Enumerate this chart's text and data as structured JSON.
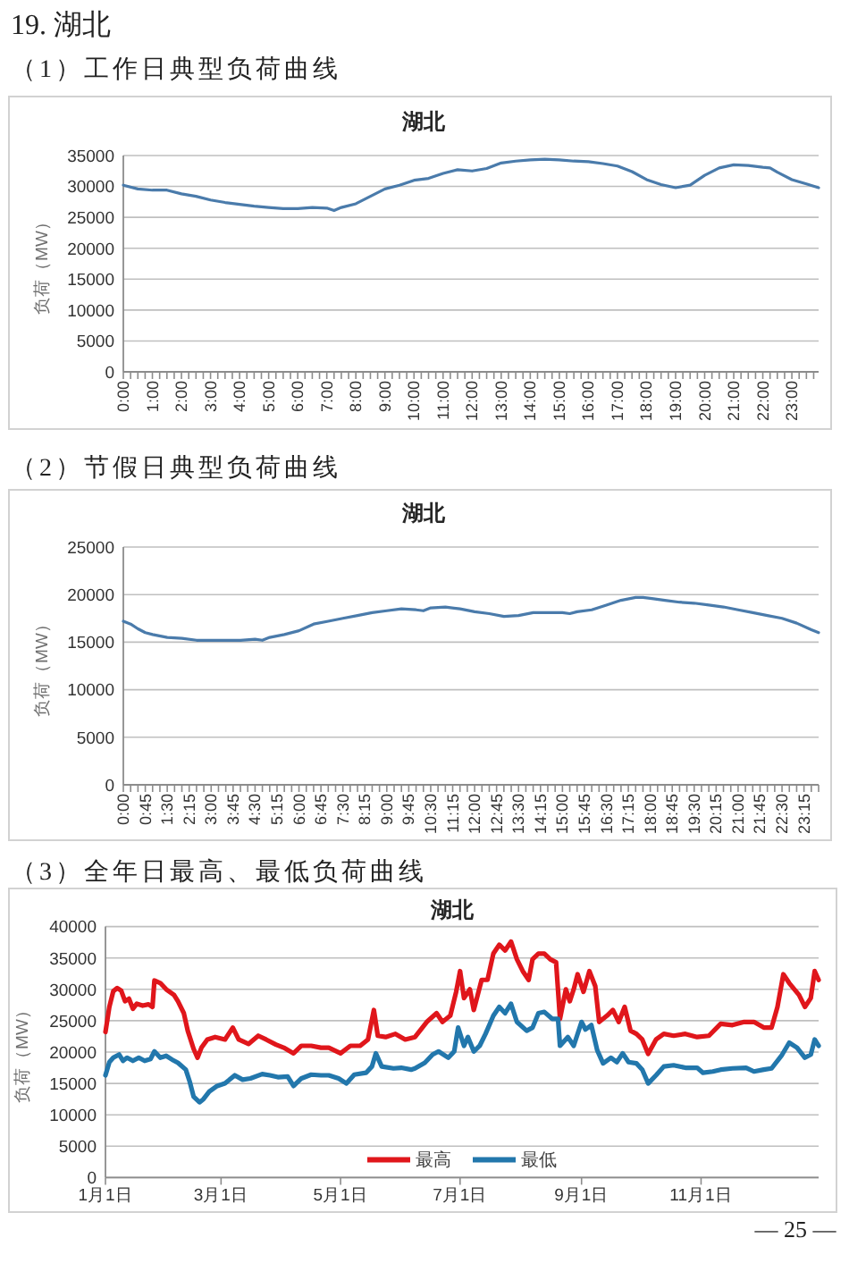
{
  "chart_data": [
    {
      "type": "line",
      "title": "湖北",
      "ylabel": "负荷（MW）",
      "annotations": [
        "19. 湖北",
        "（1）工作日典型负荷曲线"
      ],
      "series": [
        {
          "color": "#4a7bab",
          "x": [
            0,
            0.5,
            1,
            1.5,
            2,
            2.5,
            3,
            3.5,
            4,
            4.5,
            5,
            5.5,
            6,
            6.5,
            7,
            7.25,
            7.5,
            8,
            8.5,
            9,
            9.5,
            10,
            10.5,
            11,
            11.5,
            12,
            12.5,
            13,
            13.5,
            14,
            14.5,
            15,
            15.5,
            16,
            16.5,
            17,
            17.5,
            18,
            18.5,
            19,
            19.5,
            20,
            20.5,
            21,
            21.5,
            22,
            22.25,
            22.5,
            23,
            23.5,
            23.92
          ],
          "values": [
            30200,
            29600,
            29400,
            29400,
            28800,
            28400,
            27800,
            27400,
            27100,
            26800,
            26600,
            26400,
            26400,
            26600,
            26500,
            26100,
            26600,
            27200,
            28400,
            29600,
            30200,
            31000,
            31300,
            32100,
            32700,
            32500,
            32900,
            33800,
            34100,
            34300,
            34400,
            34300,
            34100,
            34000,
            33700,
            33300,
            32400,
            31100,
            30300,
            29800,
            30200,
            31800,
            33000,
            33500,
            33400,
            33100,
            33000,
            32300,
            31100,
            30400,
            29800
          ]
        }
      ],
      "xlim": [
        0,
        23.92
      ],
      "xticks": [
        {
          "value": 0,
          "label": "0:00"
        },
        {
          "value": 0.25,
          "label": null
        },
        {
          "value": 0.5,
          "label": null
        },
        {
          "value": 0.75,
          "label": null
        },
        {
          "value": 1,
          "label": "1:00"
        },
        {
          "value": 1.25,
          "label": null
        },
        {
          "value": 1.5,
          "label": null
        },
        {
          "value": 1.75,
          "label": null
        },
        {
          "value": 2,
          "label": "2:00"
        },
        {
          "value": 2.25,
          "label": null
        },
        {
          "value": 2.5,
          "label": null
        },
        {
          "value": 2.75,
          "label": null
        },
        {
          "value": 3,
          "label": "3:00"
        },
        {
          "value": 3.25,
          "label": null
        },
        {
          "value": 3.5,
          "label": null
        },
        {
          "value": 3.75,
          "label": null
        },
        {
          "value": 4,
          "label": "4:00"
        },
        {
          "value": 4.25,
          "label": null
        },
        {
          "value": 4.5,
          "label": null
        },
        {
          "value": 4.75,
          "label": null
        },
        {
          "value": 5,
          "label": "5:00"
        },
        {
          "value": 5.25,
          "label": null
        },
        {
          "value": 5.5,
          "label": null
        },
        {
          "value": 5.75,
          "label": null
        },
        {
          "value": 6,
          "label": "6:00"
        },
        {
          "value": 6.25,
          "label": null
        },
        {
          "value": 6.5,
          "label": null
        },
        {
          "value": 6.75,
          "label": null
        },
        {
          "value": 7,
          "label": "7:00"
        },
        {
          "value": 7.25,
          "label": null
        },
        {
          "value": 7.5,
          "label": null
        },
        {
          "value": 7.75,
          "label": null
        },
        {
          "value": 8,
          "label": "8:00"
        },
        {
          "value": 8.25,
          "label": null
        },
        {
          "value": 8.5,
          "label": null
        },
        {
          "value": 8.75,
          "label": null
        },
        {
          "value": 9,
          "label": "9:00"
        },
        {
          "value": 9.25,
          "label": null
        },
        {
          "value": 9.5,
          "label": null
        },
        {
          "value": 9.75,
          "label": null
        },
        {
          "value": 10,
          "label": "10:00"
        },
        {
          "value": 10.25,
          "label": null
        },
        {
          "value": 10.5,
          "label": null
        },
        {
          "value": 10.75,
          "label": null
        },
        {
          "value": 11,
          "label": "11:00"
        },
        {
          "value": 11.25,
          "label": null
        },
        {
          "value": 11.5,
          "label": null
        },
        {
          "value": 11.75,
          "label": null
        },
        {
          "value": 12,
          "label": "12:00"
        },
        {
          "value": 12.25,
          "label": null
        },
        {
          "value": 12.5,
          "label": null
        },
        {
          "value": 12.75,
          "label": null
        },
        {
          "value": 13,
          "label": "13:00"
        },
        {
          "value": 13.25,
          "label": null
        },
        {
          "value": 13.5,
          "label": null
        },
        {
          "value": 13.75,
          "label": null
        },
        {
          "value": 14,
          "label": "14:00"
        },
        {
          "value": 14.25,
          "label": null
        },
        {
          "value": 14.5,
          "label": null
        },
        {
          "value": 14.75,
          "label": null
        },
        {
          "value": 15,
          "label": "15:00"
        },
        {
          "value": 15.25,
          "label": null
        },
        {
          "value": 15.5,
          "label": null
        },
        {
          "value": 15.75,
          "label": null
        },
        {
          "value": 16,
          "label": "16:00"
        },
        {
          "value": 16.25,
          "label": null
        },
        {
          "value": 16.5,
          "label": null
        },
        {
          "value": 16.75,
          "label": null
        },
        {
          "value": 17,
          "label": "17:00"
        },
        {
          "value": 17.25,
          "label": null
        },
        {
          "value": 17.5,
          "label": null
        },
        {
          "value": 17.75,
          "label": null
        },
        {
          "value": 18,
          "label": "18:00"
        },
        {
          "value": 18.25,
          "label": null
        },
        {
          "value": 18.5,
          "label": null
        },
        {
          "value": 18.75,
          "label": null
        },
        {
          "value": 19,
          "label": "19:00"
        },
        {
          "value": 19.25,
          "label": null
        },
        {
          "value": 19.5,
          "label": null
        },
        {
          "value": 19.75,
          "label": null
        },
        {
          "value": 20,
          "label": "20:00"
        },
        {
          "value": 20.25,
          "label": null
        },
        {
          "value": 20.5,
          "label": null
        },
        {
          "value": 20.75,
          "label": null
        },
        {
          "value": 21,
          "label": "21:00"
        },
        {
          "value": 21.25,
          "label": null
        },
        {
          "value": 21.5,
          "label": null
        },
        {
          "value": 21.75,
          "label": null
        },
        {
          "value": 22,
          "label": "22:00"
        },
        {
          "value": 22.25,
          "label": null
        },
        {
          "value": 22.5,
          "label": null
        },
        {
          "value": 22.75,
          "label": null
        },
        {
          "value": 23,
          "label": "23:00"
        },
        {
          "value": 23.25,
          "label": null
        },
        {
          "value": 23.5,
          "label": null
        },
        {
          "value": 23.75,
          "label": null
        }
      ],
      "ylim": [
        0,
        35000
      ],
      "yticks": [
        0,
        5000,
        10000,
        15000,
        20000,
        25000,
        30000,
        35000
      ],
      "grid": "y"
    },
    {
      "type": "line",
      "title": "湖北",
      "ylabel": "负荷（MW）",
      "annotations": [
        "（2）节假日典型负荷曲线"
      ],
      "series": [
        {
          "color": "#4a7bab",
          "x": [
            0,
            0.25,
            0.5,
            0.75,
            1,
            1.5,
            2,
            2.5,
            3,
            3.5,
            4,
            4.5,
            4.75,
            5,
            5.5,
            6,
            6.5,
            7,
            7.5,
            8,
            8.5,
            9,
            9.5,
            10,
            10.25,
            10.5,
            11,
            11.5,
            12,
            12.5,
            13,
            13.5,
            14,
            14.5,
            15,
            15.25,
            15.5,
            16,
            16.5,
            17,
            17.5,
            17.75,
            18,
            18.5,
            19,
            19.5,
            20,
            20.5,
            21,
            21.5,
            22,
            22.5,
            23,
            23.5,
            23.75
          ],
          "values": [
            17200,
            16900,
            16400,
            16000,
            15800,
            15500,
            15400,
            15200,
            15200,
            15200,
            15200,
            15300,
            15200,
            15500,
            15800,
            16200,
            16900,
            17200,
            17500,
            17800,
            18100,
            18300,
            18500,
            18400,
            18300,
            18600,
            18700,
            18500,
            18200,
            18000,
            17700,
            17800,
            18100,
            18100,
            18100,
            18000,
            18200,
            18400,
            18900,
            19400,
            19700,
            19700,
            19600,
            19400,
            19200,
            19100,
            18900,
            18700,
            18400,
            18100,
            17800,
            17500,
            17000,
            16300,
            16000
          ]
        }
      ],
      "xlim": [
        0,
        23.75
      ],
      "xticks": [
        {
          "value": 0,
          "label": "0:00"
        },
        {
          "value": 0.25,
          "label": null
        },
        {
          "value": 0.5,
          "label": null
        },
        {
          "value": 0.75,
          "label": "0:45"
        },
        {
          "value": 1,
          "label": null
        },
        {
          "value": 1.25,
          "label": null
        },
        {
          "value": 1.5,
          "label": "1:30"
        },
        {
          "value": 1.75,
          "label": null
        },
        {
          "value": 2,
          "label": null
        },
        {
          "value": 2.25,
          "label": "2:15"
        },
        {
          "value": 2.5,
          "label": null
        },
        {
          "value": 2.75,
          "label": null
        },
        {
          "value": 3,
          "label": "3:00"
        },
        {
          "value": 3.25,
          "label": null
        },
        {
          "value": 3.5,
          "label": null
        },
        {
          "value": 3.75,
          "label": "3:45"
        },
        {
          "value": 4,
          "label": null
        },
        {
          "value": 4.25,
          "label": null
        },
        {
          "value": 4.5,
          "label": "4:30"
        },
        {
          "value": 4.75,
          "label": null
        },
        {
          "value": 5,
          "label": null
        },
        {
          "value": 5.25,
          "label": "5:15"
        },
        {
          "value": 5.5,
          "label": null
        },
        {
          "value": 5.75,
          "label": null
        },
        {
          "value": 6,
          "label": "6:00"
        },
        {
          "value": 6.25,
          "label": null
        },
        {
          "value": 6.5,
          "label": null
        },
        {
          "value": 6.75,
          "label": "6:45"
        },
        {
          "value": 7,
          "label": null
        },
        {
          "value": 7.25,
          "label": null
        },
        {
          "value": 7.5,
          "label": "7:30"
        },
        {
          "value": 7.75,
          "label": null
        },
        {
          "value": 8,
          "label": null
        },
        {
          "value": 8.25,
          "label": "8:15"
        },
        {
          "value": 8.5,
          "label": null
        },
        {
          "value": 8.75,
          "label": null
        },
        {
          "value": 9,
          "label": "9:00"
        },
        {
          "value": 9.25,
          "label": null
        },
        {
          "value": 9.5,
          "label": null
        },
        {
          "value": 9.75,
          "label": "9:45"
        },
        {
          "value": 10,
          "label": null
        },
        {
          "value": 10.25,
          "label": null
        },
        {
          "value": 10.5,
          "label": "10:30"
        },
        {
          "value": 10.75,
          "label": null
        },
        {
          "value": 11,
          "label": null
        },
        {
          "value": 11.25,
          "label": "11:15"
        },
        {
          "value": 11.5,
          "label": null
        },
        {
          "value": 11.75,
          "label": null
        },
        {
          "value": 12,
          "label": "12:00"
        },
        {
          "value": 12.25,
          "label": null
        },
        {
          "value": 12.5,
          "label": null
        },
        {
          "value": 12.75,
          "label": "12:45"
        },
        {
          "value": 13,
          "label": null
        },
        {
          "value": 13.25,
          "label": null
        },
        {
          "value": 13.5,
          "label": "13:30"
        },
        {
          "value": 13.75,
          "label": null
        },
        {
          "value": 14,
          "label": null
        },
        {
          "value": 14.25,
          "label": "14:15"
        },
        {
          "value": 14.5,
          "label": null
        },
        {
          "value": 14.75,
          "label": null
        },
        {
          "value": 15,
          "label": "15:00"
        },
        {
          "value": 15.25,
          "label": null
        },
        {
          "value": 15.5,
          "label": null
        },
        {
          "value": 15.75,
          "label": "15:45"
        },
        {
          "value": 16,
          "label": null
        },
        {
          "value": 16.25,
          "label": null
        },
        {
          "value": 16.5,
          "label": "16:30"
        },
        {
          "value": 16.75,
          "label": null
        },
        {
          "value": 17,
          "label": null
        },
        {
          "value": 17.25,
          "label": "17:15"
        },
        {
          "value": 17.5,
          "label": null
        },
        {
          "value": 17.75,
          "label": null
        },
        {
          "value": 18,
          "label": "18:00"
        },
        {
          "value": 18.25,
          "label": null
        },
        {
          "value": 18.5,
          "label": null
        },
        {
          "value": 18.75,
          "label": "18:45"
        },
        {
          "value": 19,
          "label": null
        },
        {
          "value": 19.25,
          "label": null
        },
        {
          "value": 19.5,
          "label": "19:30"
        },
        {
          "value": 19.75,
          "label": null
        },
        {
          "value": 20,
          "label": null
        },
        {
          "value": 20.25,
          "label": "20:15"
        },
        {
          "value": 20.5,
          "label": null
        },
        {
          "value": 20.75,
          "label": null
        },
        {
          "value": 21,
          "label": "21:00"
        },
        {
          "value": 21.25,
          "label": null
        },
        {
          "value": 21.5,
          "label": null
        },
        {
          "value": 21.75,
          "label": "21:45"
        },
        {
          "value": 22,
          "label": null
        },
        {
          "value": 22.25,
          "label": null
        },
        {
          "value": 22.5,
          "label": "22:30"
        },
        {
          "value": 22.75,
          "label": null
        },
        {
          "value": 23,
          "label": null
        },
        {
          "value": 23.25,
          "label": "23:15"
        },
        {
          "value": 23.5,
          "label": null
        },
        {
          "value": 23.75,
          "label": null
        }
      ],
      "ylim": [
        0,
        25000
      ],
      "yticks": [
        0,
        5000,
        10000,
        15000,
        20000,
        25000
      ],
      "grid": "y"
    },
    {
      "type": "line",
      "title": "湖北",
      "ylabel": "负荷（MW）",
      "annotations": [
        "（3）全年日最高、最低负荷曲线",
        "— 25 —"
      ],
      "series": [
        {
          "name": "最高",
          "color": "#e0161b",
          "x": [
            "--01-01",
            "--01-03",
            "--01-05",
            "--01-07",
            "--01-09",
            "--01-11",
            "--01-13",
            "--01-15",
            "--01-17",
            "--01-20",
            "--01-23",
            "--01-25",
            "--01-26",
            "--01-29",
            "--02-01",
            "--02-05",
            "--02-07",
            "--02-10",
            "--02-12",
            "--02-15",
            "--02-17",
            "--02-19",
            "--02-22",
            "--02-26",
            "--03-03",
            "--03-07",
            "--03-10",
            "--03-15",
            "--03-20",
            "--03-24",
            "--03-29",
            "--04-02",
            "--04-07",
            "--04-11",
            "--04-16",
            "--04-21",
            "--04-25",
            "--05-01",
            "--05-06",
            "--05-11",
            "--05-15",
            "--05-18",
            "--05-20",
            "--05-24",
            "--05-29",
            "--06-03",
            "--06-08",
            "--06-14",
            "--06-19",
            "--06-22",
            "--06-26",
            "--06-29",
            "--07-01",
            "--07-03",
            "--07-06",
            "--07-08",
            "--07-10",
            "--07-12",
            "--07-15",
            "--07-18",
            "--07-21",
            "--07-24",
            "--07-27",
            "--07-30",
            "--08-02",
            "--08-05",
            "--08-07",
            "--08-10",
            "--08-13",
            "--08-16",
            "--08-19",
            "--08-21",
            "--08-24",
            "--08-26",
            "--08-28",
            "--08-30",
            "--09-02",
            "--09-05",
            "--09-08",
            "--09-10",
            "--09-14",
            "--09-17",
            "--09-20",
            "--09-23",
            "--09-26",
            "--09-29",
            "--10-02",
            "--10-05",
            "--10-09",
            "--10-13",
            "--10-18",
            "--10-24",
            "--10-30",
            "--11-05",
            "--11-11",
            "--11-17",
            "--11-23",
            "--11-28",
            "--12-03",
            "--12-07",
            "--12-10",
            "--12-13",
            "--12-16",
            "--12-21",
            "--12-24",
            "--12-27",
            "--12-29",
            "--12-31"
          ],
          "values": [
            23200,
            27200,
            29700,
            30200,
            29800,
            28100,
            28500,
            26900,
            27700,
            27400,
            27600,
            27200,
            31400,
            31000,
            30000,
            29100,
            28100,
            26200,
            23400,
            20500,
            19100,
            20700,
            22000,
            22400,
            22000,
            23900,
            22000,
            21300,
            22600,
            22000,
            21200,
            20700,
            19800,
            21000,
            21000,
            20700,
            20700,
            19800,
            21000,
            21000,
            22000,
            26700,
            22600,
            22400,
            22900,
            22000,
            22400,
            24800,
            26200,
            24800,
            25800,
            29600,
            32900,
            28600,
            30000,
            26700,
            29100,
            31500,
            31500,
            35700,
            37100,
            36200,
            37600,
            34800,
            32900,
            31500,
            34800,
            35700,
            35700,
            34800,
            34300,
            25300,
            30000,
            28100,
            30000,
            32400,
            29600,
            32900,
            30500,
            24800,
            25800,
            26700,
            24800,
            27200,
            23400,
            22900,
            22000,
            19700,
            22000,
            22900,
            22600,
            22900,
            22400,
            22600,
            24500,
            24300,
            24800,
            24800,
            23900,
            23900,
            27200,
            32400,
            31000,
            29100,
            27200,
            28600,
            32900,
            31500
          ]
        },
        {
          "name": "最低",
          "color": "#2277ac",
          "x": [
            "--01-01",
            "--01-03",
            "--01-05",
            "--01-08",
            "--01-10",
            "--01-12",
            "--01-15",
            "--01-18",
            "--01-21",
            "--01-24",
            "--01-26",
            "--01-29",
            "--02-01",
            "--02-04",
            "--02-07",
            "--02-11",
            "--02-13",
            "--02-15",
            "--02-18",
            "--02-20",
            "--02-23",
            "--02-27",
            "--03-03",
            "--03-08",
            "--03-12",
            "--03-16",
            "--03-22",
            "--03-26",
            "--03-30",
            "--04-04",
            "--04-07",
            "--04-11",
            "--04-16",
            "--04-21",
            "--04-25",
            "--04-30",
            "--05-04",
            "--05-08",
            "--05-14",
            "--05-17",
            "--05-19",
            "--05-22",
            "--05-28",
            "--06-01",
            "--06-06",
            "--06-08",
            "--06-13",
            "--06-17",
            "--06-20",
            "--06-25",
            "--06-28",
            "--06-30",
            "--07-03",
            "--07-05",
            "--07-08",
            "--07-11",
            "--07-14",
            "--07-18",
            "--07-21",
            "--07-24",
            "--07-27",
            "--07-30",
            "--08-04",
            "--08-07",
            "--08-10",
            "--08-13",
            "--08-17",
            "--08-20",
            "--08-21",
            "--08-25",
            "--08-28",
            "--09-01",
            "--09-03",
            "--09-06",
            "--09-09",
            "--09-12",
            "--09-16",
            "--09-19",
            "--09-22",
            "--09-25",
            "--09-29",
            "--10-02",
            "--10-05",
            "--10-09",
            "--10-13",
            "--10-18",
            "--10-24",
            "--10-30",
            "--11-02",
            "--11-07",
            "--11-11",
            "--11-17",
            "--11-24",
            "--11-28",
            "--12-03",
            "--12-07",
            "--12-12",
            "--12-16",
            "--12-20",
            "--12-24",
            "--12-27",
            "--12-29",
            "--12-31"
          ],
          "values": [
            16300,
            18400,
            19100,
            19600,
            18600,
            19100,
            18600,
            19100,
            18600,
            18900,
            20100,
            19100,
            19400,
            18800,
            18300,
            17200,
            15300,
            12900,
            12000,
            12500,
            13700,
            14600,
            15000,
            16300,
            15600,
            15800,
            16500,
            16300,
            16000,
            16100,
            14600,
            15800,
            16400,
            16300,
            16300,
            15800,
            15000,
            16400,
            16700,
            17700,
            19800,
            17700,
            17400,
            17500,
            17200,
            17400,
            18300,
            19600,
            20100,
            19100,
            20100,
            23900,
            21000,
            22400,
            20100,
            21000,
            22900,
            25800,
            27200,
            26200,
            27700,
            24800,
            23400,
            23900,
            26200,
            26400,
            25300,
            25300,
            21000,
            22400,
            21000,
            24800,
            23600,
            24300,
            20300,
            18200,
            19100,
            18400,
            19800,
            18400,
            18200,
            17200,
            15000,
            16300,
            17700,
            17900,
            17500,
            17500,
            16700,
            16900,
            17200,
            17400,
            17500,
            16900,
            17200,
            17400,
            19400,
            21500,
            20700,
            19100,
            19600,
            22000,
            21000
          ]
        }
      ],
      "xlim": [
        "--01-01",
        "--12-31"
      ],
      "xticks": [
        {
          "value": "--01-01",
          "label": "1月1日"
        },
        {
          "value": "--03-01",
          "label": "3月1日"
        },
        {
          "value": "--05-01",
          "label": "5月1日"
        },
        {
          "value": "--07-01",
          "label": "7月1日"
        },
        {
          "value": "--09-01",
          "label": "9月1日"
        },
        {
          "value": "--11-01",
          "label": "11月1日"
        }
      ],
      "ylim": [
        0,
        40000
      ],
      "yticks": [
        0,
        5000,
        10000,
        15000,
        20000,
        25000,
        30000,
        35000,
        40000
      ],
      "grid": "y",
      "legend": "bottom"
    }
  ]
}
